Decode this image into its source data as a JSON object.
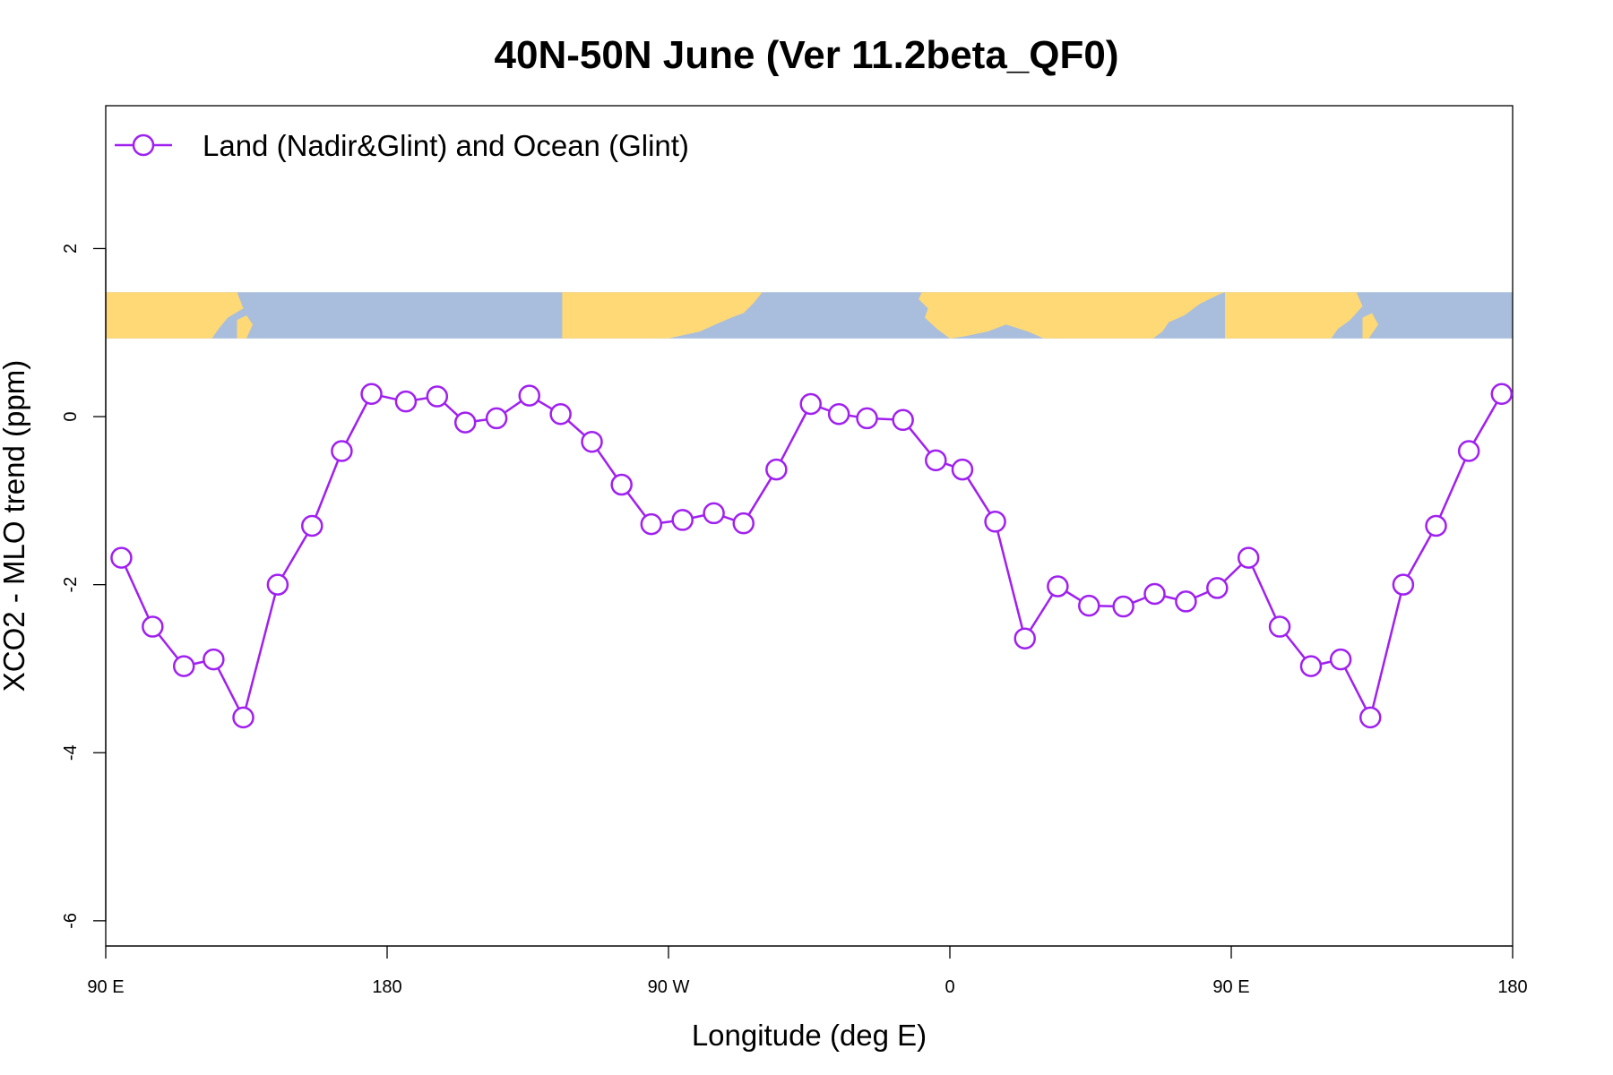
{
  "chart_data": {
    "type": "line",
    "title": "40N-50N June (Ver 11.2beta_QF0)",
    "xlabel": "Longitude (deg E)",
    "ylabel": "XCO2 - MLO trend (ppm)",
    "xlim": [
      90,
      540
    ],
    "ylim": [
      -6.3,
      3.7
    ],
    "x_ticks": [
      {
        "value": 90,
        "label": "90 E"
      },
      {
        "value": 180,
        "label": "180"
      },
      {
        "value": 270,
        "label": "90 W"
      },
      {
        "value": 360,
        "label": "0"
      },
      {
        "value": 450,
        "label": "90 E"
      },
      {
        "value": 540,
        "label": "180"
      }
    ],
    "y_ticks": [
      {
        "value": 2,
        "label": "2"
      },
      {
        "value": 0,
        "label": "0"
      },
      {
        "value": -2,
        "label": "-2"
      },
      {
        "value": -4,
        "label": "-4"
      },
      {
        "value": -6,
        "label": "-6"
      }
    ],
    "legend": {
      "position": "top-left",
      "label": "Land (Nadir&Glint) and Ocean (Glint)"
    },
    "map_band": {
      "y_range": [
        0.93,
        1.48
      ],
      "land_color": "#FFD975",
      "ocean_color": "#A8BEDC"
    },
    "series": [
      {
        "name": "Land (Nadir&Glint) and Ocean (Glint)",
        "color": "#A020F0",
        "x": [
          95,
          105,
          115,
          124.5,
          134,
          145,
          156,
          165.5,
          175,
          186,
          196,
          205,
          215,
          225.5,
          235.5,
          245.5,
          255,
          264.5,
          274.5,
          284.5,
          294,
          304.5,
          315.5,
          324.5,
          333.5,
          345,
          355.5,
          364,
          374.5,
          384,
          394.5,
          404.5,
          415.5,
          425.5,
          435.5,
          445.5,
          455.5,
          465.5,
          475.5,
          485,
          494.5,
          505,
          515.5,
          526,
          536.5
        ],
        "y": [
          -1.68,
          -2.5,
          -2.97,
          -2.89,
          -3.58,
          -2.0,
          -1.3,
          -0.41,
          0.27,
          0.18,
          0.24,
          -0.07,
          -0.02,
          0.25,
          0.03,
          -0.3,
          -0.81,
          -1.28,
          -1.23,
          -1.15,
          -1.27,
          -0.63,
          0.15,
          0.03,
          -0.02,
          -0.04,
          -0.52,
          -0.63,
          -1.25,
          -2.64,
          -2.02,
          -2.25,
          -2.26,
          -2.11,
          -2.2,
          -2.04,
          -1.68,
          -2.5,
          -2.97,
          -2.89,
          -3.58,
          -2.0,
          -1.3,
          -0.41,
          0.27
        ]
      }
    ]
  }
}
